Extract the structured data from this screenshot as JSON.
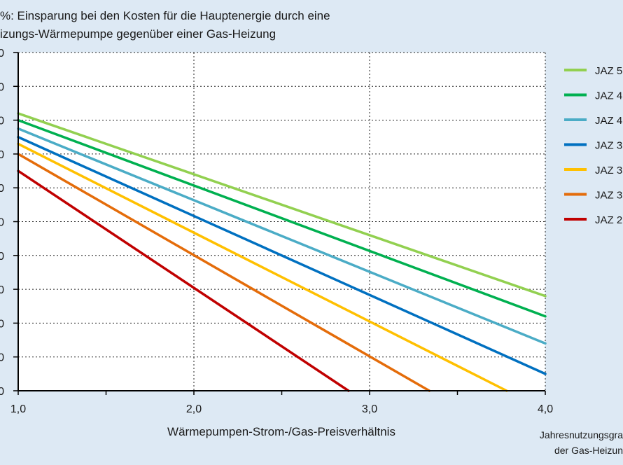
{
  "chart_data": {
    "type": "line",
    "title_lines": [
      "%: Einsparung  bei den Kosten  für die Hauptenergie  durch eine",
      "izungs-Wärmepumpe  gegenüber  einer Gas-Heizung"
    ],
    "xlabel": "Wärmepumpen-Strom-/Gas-Preisverhältnis",
    "note_lines": [
      "Jahresnutzungsgra",
      "der Gas-Heizun"
    ],
    "xlim": [
      1.0,
      4.0
    ],
    "ylim": [
      0,
      100
    ],
    "x_ticks": [
      1.0,
      2.0,
      3.0,
      4.0
    ],
    "x_tick_labels": [
      "1,0",
      "2,0",
      "3,0",
      "4,0"
    ],
    "y_ticks": [
      0,
      10,
      20,
      30,
      40,
      50,
      60,
      70,
      80,
      90,
      100
    ],
    "y_tick_labels": [
      "0",
      "0",
      "0",
      "0",
      "0",
      "0",
      "0",
      "0",
      "0",
      "0",
      "0"
    ],
    "grid": "dotted",
    "legend_position": "right",
    "series": [
      {
        "name": "JAZ 5",
        "color": "#92d050",
        "x": [
          1.0,
          4.0
        ],
        "y": [
          82.0,
          28.0
        ]
      },
      {
        "name": "JAZ 4",
        "color": "#00b050",
        "x": [
          1.0,
          4.0
        ],
        "y": [
          80.0,
          22.0
        ]
      },
      {
        "name": "JAZ 4",
        "color": "#4bacc6",
        "x": [
          1.0,
          4.0
        ],
        "y": [
          77.5,
          14.0
        ]
      },
      {
        "name": "JAZ 3",
        "color": "#0070c0",
        "x": [
          1.0,
          4.0
        ],
        "y": [
          75.0,
          5.0
        ]
      },
      {
        "name": "JAZ 3",
        "color": "#ffc000",
        "x": [
          1.0,
          3.78
        ],
        "y": [
          73.0,
          0.0
        ]
      },
      {
        "name": "JAZ 3",
        "color": "#e46c0a",
        "x": [
          1.0,
          3.34
        ],
        "y": [
          70.0,
          0.0
        ]
      },
      {
        "name": "JAZ 2",
        "color": "#c00000",
        "x": [
          1.0,
          2.88
        ],
        "y": [
          65.0,
          0.0
        ]
      }
    ]
  }
}
